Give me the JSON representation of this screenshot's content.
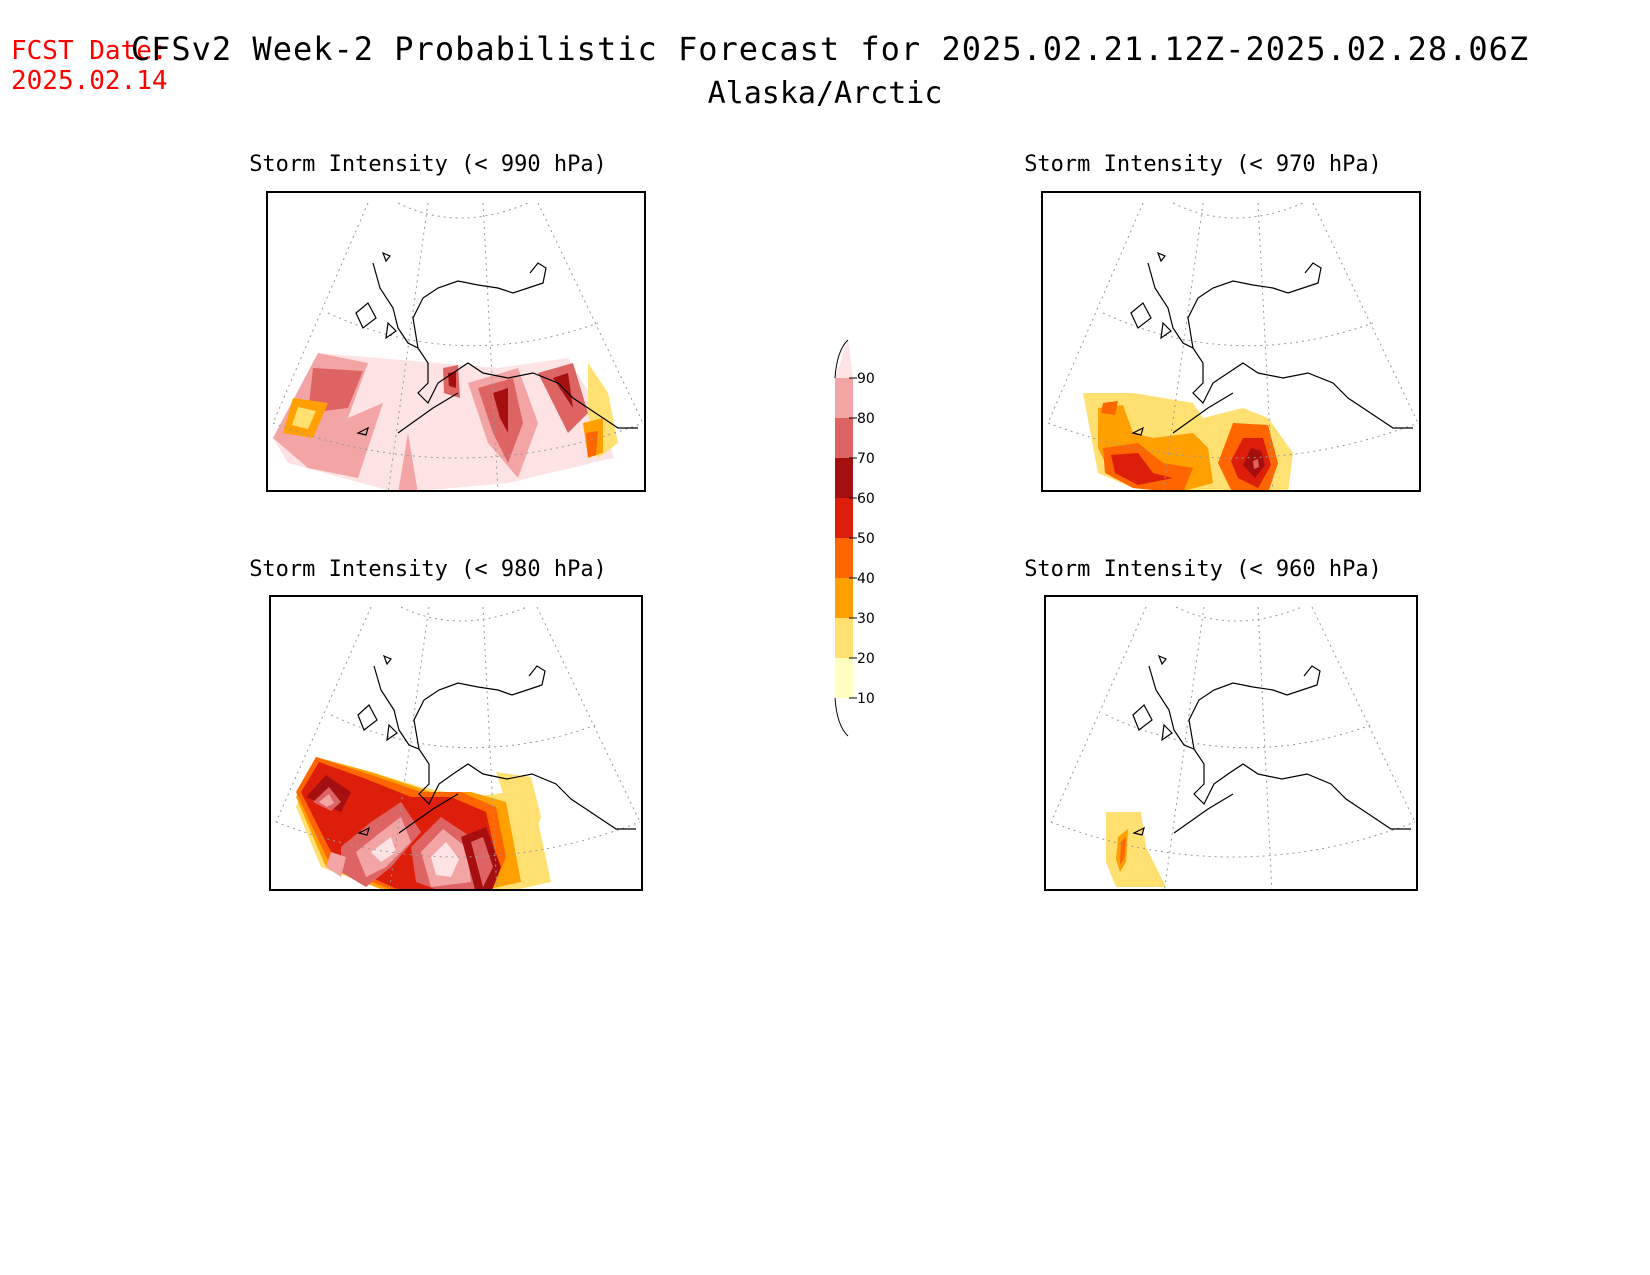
{
  "header": {
    "fcst_label": "FCST Date:",
    "fcst_date": "2025.02.14",
    "title": "CFSv2 Week-2 Probabilistic Forecast for 2025.02.21.12Z-2025.02.28.06Z",
    "subtitle": "Alaska/Arctic"
  },
  "panels": [
    {
      "id": "p990",
      "title": "Storm Intensity (< 990 hPa)"
    },
    {
      "id": "p970",
      "title": "Storm Intensity (< 970 hPa)"
    },
    {
      "id": "p980",
      "title": "Storm Intensity (< 980 hPa)"
    },
    {
      "id": "p960",
      "title": "Storm Intensity (< 960 hPa)"
    }
  ],
  "legend": {
    "levels": [
      "90",
      "80",
      "70",
      "60",
      "50",
      "40",
      "30",
      "20",
      "10"
    ],
    "colors": [
      "#fde3e3",
      "#f3a5a5",
      "#de6464",
      "#a50f0f",
      "#dc1e0a",
      "#ff6600",
      "#ffa000",
      "#ffe070",
      "#ffffc0"
    ]
  }
}
